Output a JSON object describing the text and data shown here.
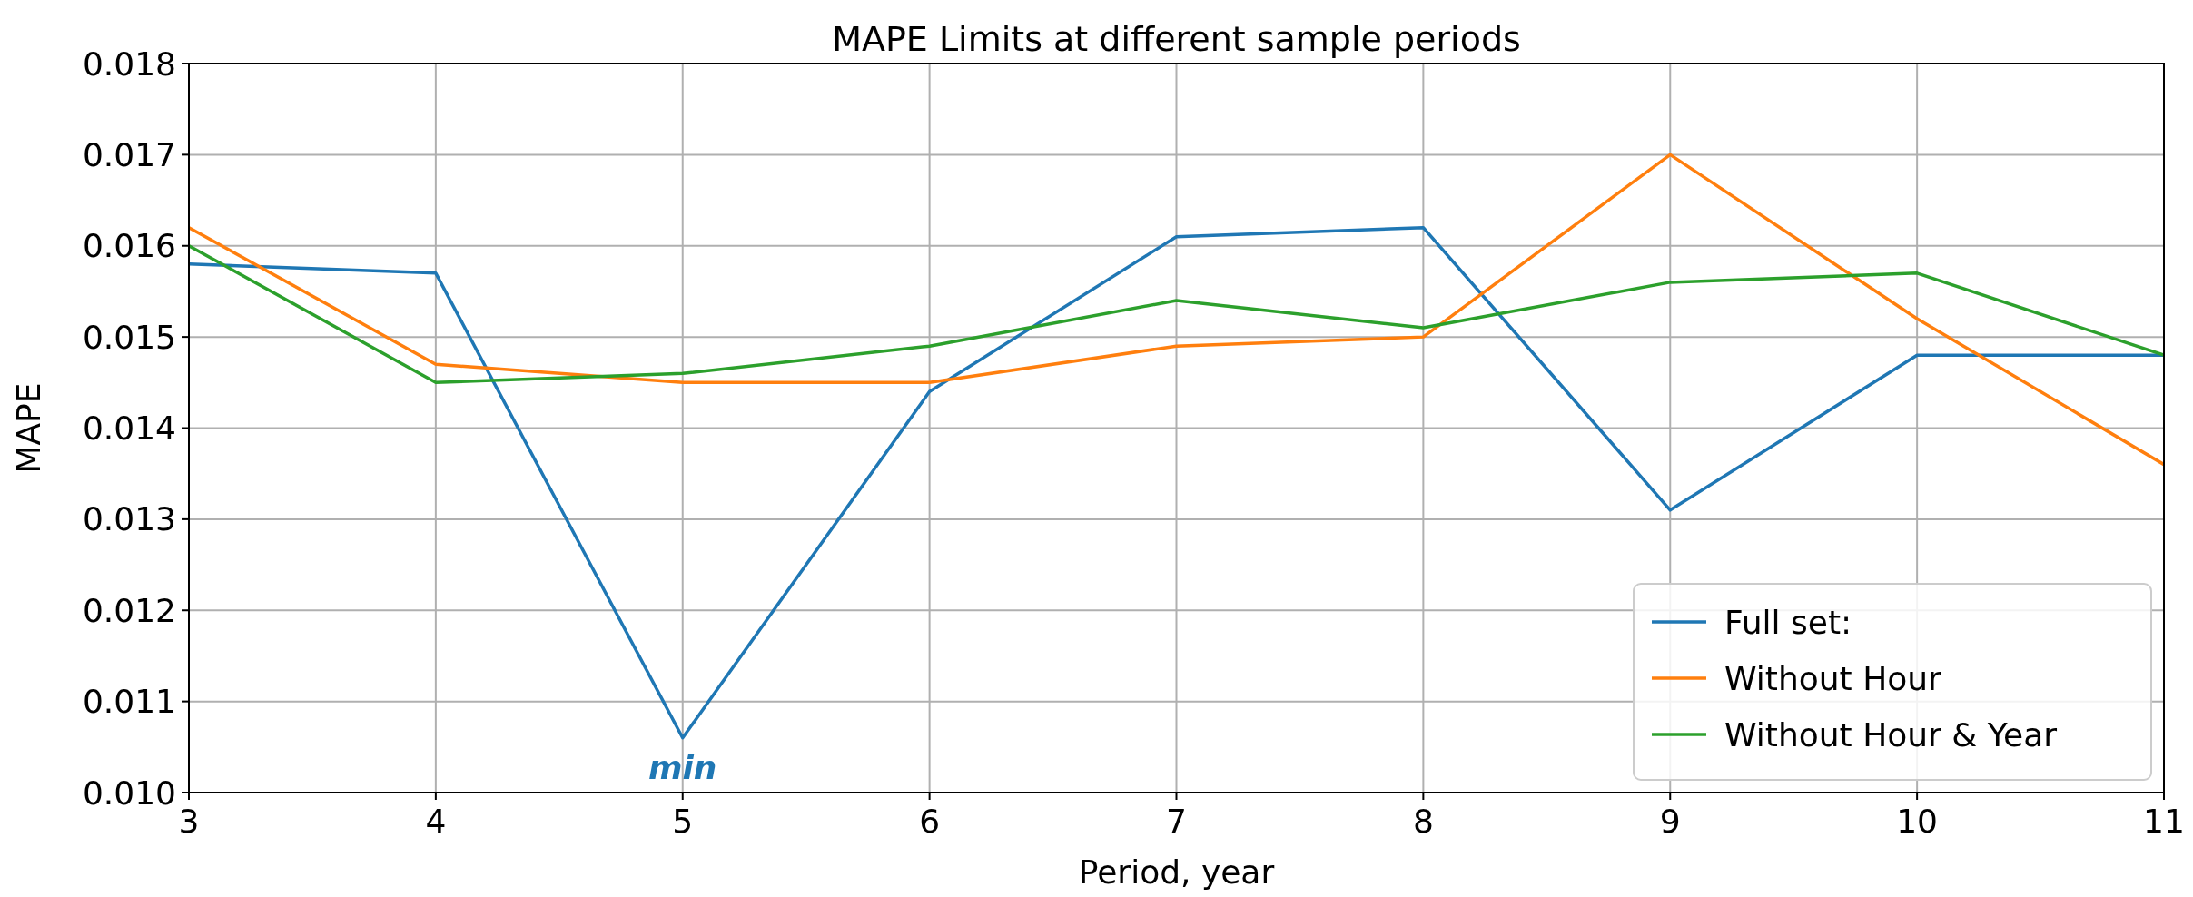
{
  "chart_data": {
    "type": "line",
    "title": "MAPE Limits at different sample periods",
    "xlabel": "Period, year",
    "ylabel": "MAPE",
    "x": [
      3,
      4,
      5,
      6,
      7,
      8,
      9,
      10,
      11
    ],
    "series": [
      {
        "name": "Full set:",
        "color": "#1f77b4",
        "values": [
          0.0158,
          0.0157,
          0.0106,
          0.0144,
          0.0161,
          0.0162,
          0.0131,
          0.0148,
          0.0148
        ]
      },
      {
        "name": "Without Hour",
        "color": "#ff7f0e",
        "values": [
          0.0162,
          0.0147,
          0.0145,
          0.0145,
          0.0149,
          0.015,
          0.017,
          0.0152,
          0.0136
        ]
      },
      {
        "name": "Without Hour & Year",
        "color": "#2ca02c",
        "values": [
          0.016,
          0.0145,
          0.0146,
          0.0149,
          0.0154,
          0.0151,
          0.0156,
          0.0157,
          0.0148
        ]
      }
    ],
    "xlim": [
      3,
      11
    ],
    "xticks": [
      3,
      4,
      5,
      6,
      7,
      8,
      9,
      10,
      11
    ],
    "ylim": [
      0.01,
      0.018
    ],
    "yticks": [
      {
        "value": 0.01,
        "label": "0.010"
      },
      {
        "value": 0.011,
        "label": "0.011"
      },
      {
        "value": 0.012,
        "label": "0.012"
      },
      {
        "value": 0.013,
        "label": "0.013"
      },
      {
        "value": 0.014,
        "label": "0.014"
      },
      {
        "value": 0.015,
        "label": "0.015"
      },
      {
        "value": 0.016,
        "label": "0.016"
      },
      {
        "value": 0.017,
        "label": "0.017"
      },
      {
        "value": 0.018,
        "label": "0.018"
      }
    ],
    "annotations": [
      {
        "text": "min",
        "x": 5,
        "y": 0.0106
      }
    ],
    "grid": true,
    "legend": "bottom right"
  }
}
